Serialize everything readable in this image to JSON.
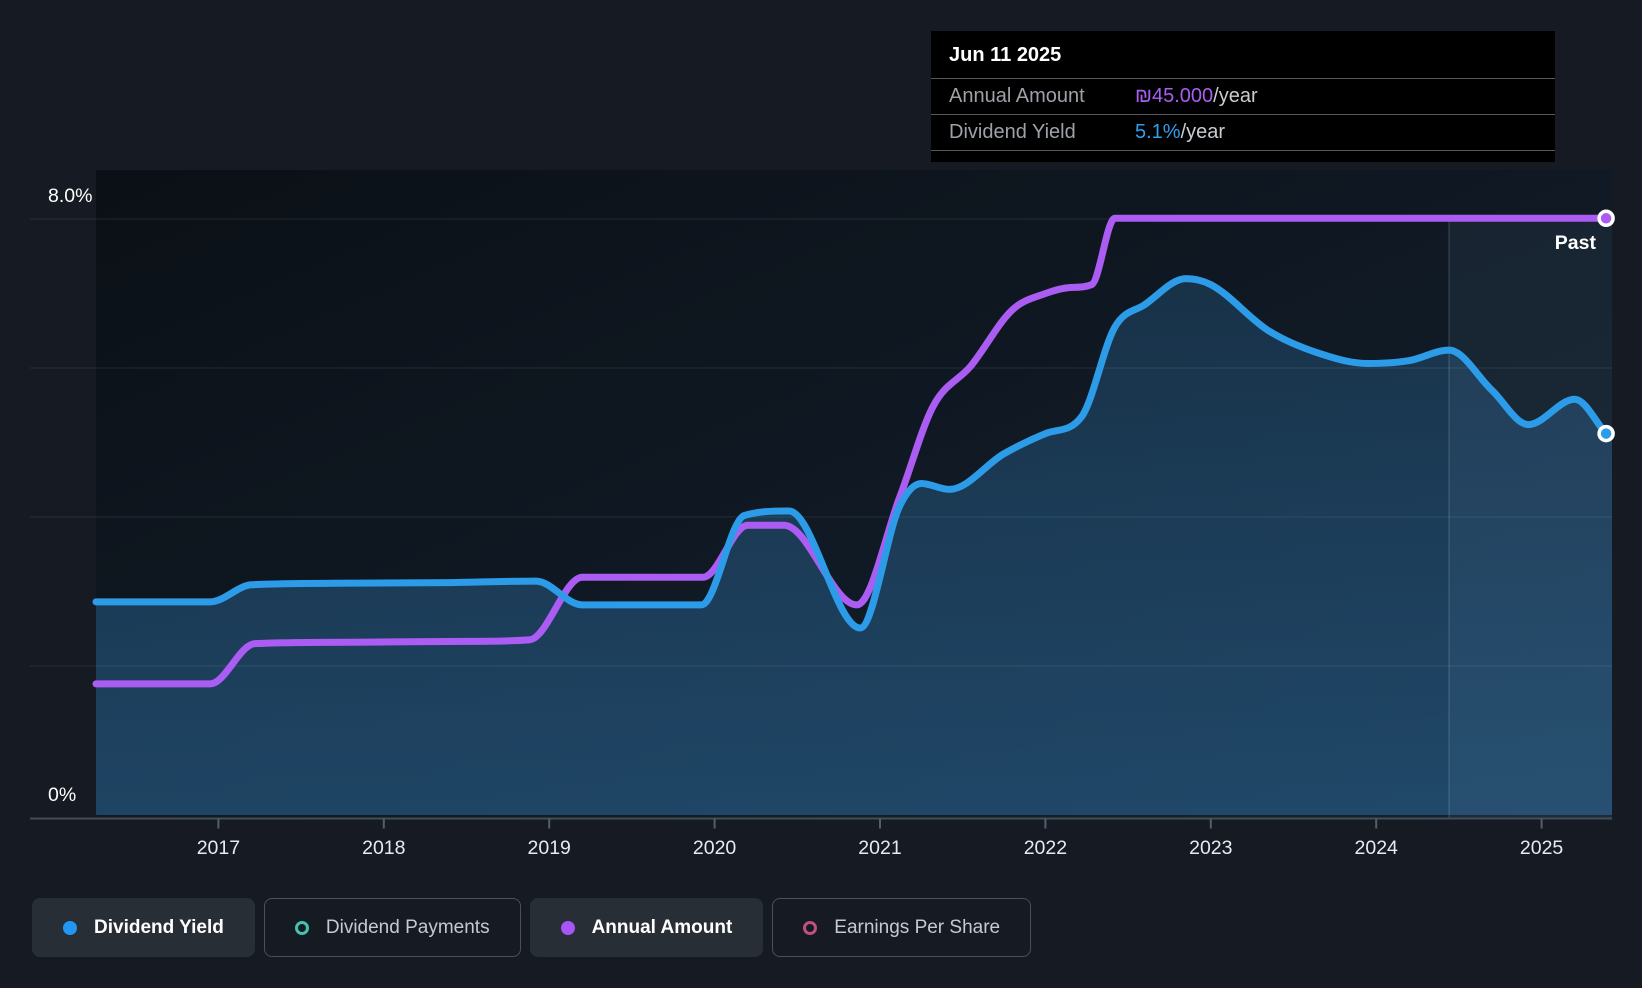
{
  "tooltip": {
    "date": "Jun 11 2025",
    "rows": [
      {
        "label": "Annual Amount",
        "value": "₪45.000",
        "suffix": "/year",
        "color": "#a95ef2"
      },
      {
        "label": "Dividend Yield",
        "value": "5.1%",
        "suffix": "/year",
        "color": "#2e9fee"
      }
    ]
  },
  "legend": {
    "items": [
      {
        "label": "Dividend Yield",
        "color": "#2196f3",
        "marker": "filled",
        "active": true
      },
      {
        "label": "Dividend Payments",
        "color": "#42c3ae",
        "marker": "ring",
        "active": false
      },
      {
        "label": "Annual Amount",
        "color": "#a855f7",
        "marker": "filled",
        "active": true
      },
      {
        "label": "Earnings Per Share",
        "color": "#bf4f81",
        "marker": "ring",
        "active": false
      }
    ]
  },
  "chart_data": {
    "type": "line",
    "y_axis": {
      "min": 0,
      "max": 8,
      "unit": "%",
      "label_top": "8.0%",
      "label_bottom": "0%",
      "gridlines": [
        2,
        4,
        6,
        8
      ]
    },
    "x_axis": {
      "min": 2016.26,
      "max": 2025.42,
      "tick_years": [
        2017,
        2018,
        2019,
        2020,
        2021,
        2022,
        2023,
        2024,
        2025
      ],
      "ticks": [
        "2017",
        "2018",
        "2019",
        "2020",
        "2021",
        "2022",
        "2023",
        "2024",
        "2025"
      ]
    },
    "past_region": {
      "label": "Past",
      "start_year": 2024.44
    },
    "series": [
      {
        "name": "Dividend Yield",
        "color": "#2d9ce8",
        "style": "line+area",
        "end_marker": true,
        "points": [
          [
            2016.26,
            2.86
          ],
          [
            2016.95,
            2.86
          ],
          [
            2017.2,
            3.09
          ],
          [
            2017.7,
            3.11
          ],
          [
            2018.4,
            3.12
          ],
          [
            2018.92,
            3.14
          ],
          [
            2019.2,
            2.82
          ],
          [
            2019.92,
            2.82
          ],
          [
            2020.18,
            4.02
          ],
          [
            2020.45,
            4.08
          ],
          [
            2020.88,
            2.51
          ],
          [
            2021.12,
            4.15
          ],
          [
            2021.25,
            4.45
          ],
          [
            2021.42,
            4.37
          ],
          [
            2021.75,
            4.85
          ],
          [
            2022.0,
            5.12
          ],
          [
            2022.22,
            5.35
          ],
          [
            2022.42,
            6.55
          ],
          [
            2022.6,
            6.85
          ],
          [
            2022.85,
            7.2
          ],
          [
            2023.0,
            7.12
          ],
          [
            2023.35,
            6.5
          ],
          [
            2023.65,
            6.2
          ],
          [
            2023.95,
            6.06
          ],
          [
            2024.2,
            6.1
          ],
          [
            2024.44,
            6.24
          ],
          [
            2024.7,
            5.7
          ],
          [
            2024.92,
            5.24
          ],
          [
            2025.2,
            5.58
          ],
          [
            2025.39,
            5.12
          ]
        ]
      },
      {
        "name": "Annual Amount",
        "color": "#ab5df3",
        "style": "line",
        "end_marker": true,
        "points": [
          [
            2016.26,
            1.76
          ],
          [
            2016.95,
            1.76
          ],
          [
            2017.22,
            2.3
          ],
          [
            2017.8,
            2.32
          ],
          [
            2018.5,
            2.33
          ],
          [
            2018.88,
            2.35
          ],
          [
            2019.2,
            3.19
          ],
          [
            2019.93,
            3.19
          ],
          [
            2020.2,
            3.89
          ],
          [
            2020.42,
            3.89
          ],
          [
            2020.86,
            2.82
          ],
          [
            2021.12,
            4.27
          ],
          [
            2021.32,
            5.48
          ],
          [
            2021.55,
            6.03
          ],
          [
            2021.8,
            6.78
          ],
          [
            2022.0,
            7.0
          ],
          [
            2022.15,
            7.08
          ],
          [
            2022.28,
            7.12
          ],
          [
            2022.42,
            8.01
          ],
          [
            2023.2,
            8.01
          ],
          [
            2024.3,
            8.01
          ],
          [
            2025.39,
            8.01
          ]
        ]
      }
    ]
  }
}
